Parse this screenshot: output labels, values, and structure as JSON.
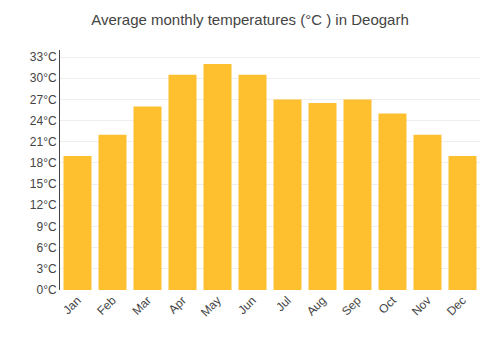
{
  "chart_data": {
    "type": "bar",
    "title": "Average monthly temperatures (°C ) in Deogarh",
    "categories": [
      "Jan",
      "Feb",
      "Mar",
      "Apr",
      "May",
      "Jun",
      "Jul",
      "Aug",
      "Sep",
      "Oct",
      "Nov",
      "Dec"
    ],
    "values": [
      19.0,
      22.0,
      26.0,
      30.5,
      32.0,
      30.5,
      27.0,
      26.5,
      27.0,
      25.0,
      22.0,
      19.0
    ],
    "color": "#FFC030",
    "ylim": [
      0,
      34
    ],
    "yticks": [
      {
        "value": 0,
        "label": "0°C"
      },
      {
        "value": 3,
        "label": "3°C"
      },
      {
        "value": 6,
        "label": "6°C"
      },
      {
        "value": 9,
        "label": "9°C"
      },
      {
        "value": 12,
        "label": "12°C"
      },
      {
        "value": 15,
        "label": "15°C"
      },
      {
        "value": 18,
        "label": "18°C"
      },
      {
        "value": 21,
        "label": "21°C"
      },
      {
        "value": 24,
        "label": "24°C"
      },
      {
        "value": 27,
        "label": "27°C"
      },
      {
        "value": 30,
        "label": "30°C"
      },
      {
        "value": 33,
        "label": "33°C"
      }
    ],
    "grid": true
  }
}
